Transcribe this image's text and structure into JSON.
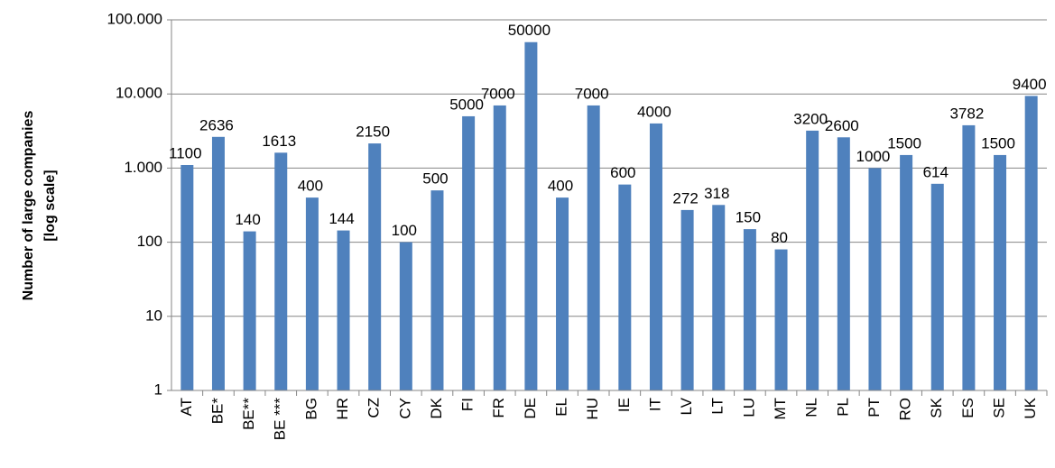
{
  "chart_data": {
    "type": "bar",
    "ylabel": [
      "Number of large companies",
      "[log scale]"
    ],
    "categories": [
      "AT",
      "BE*",
      "BE**",
      "BE ***",
      "BG",
      "HR",
      "CZ",
      "CY",
      "DK",
      "FI",
      "FR",
      "DE",
      "EL",
      "HU",
      "IE",
      "IT",
      "LV",
      "LT",
      "LU",
      "MT",
      "NL",
      "PL",
      "PT",
      "RO",
      "SK",
      "ES",
      "SE",
      "UK"
    ],
    "values": [
      1100,
      2636,
      140,
      1613,
      400,
      144,
      2150,
      100,
      500,
      5000,
      7000,
      50000,
      400,
      7000,
      600,
      4000,
      272,
      318,
      150,
      80,
      3200,
      2600,
      1000,
      1500,
      614,
      3782,
      1500,
      9400
    ],
    "color": "#4f81bd",
    "ylim": [
      1,
      100000
    ],
    "yticks": [
      1,
      10,
      100,
      {
        "value": 1000,
        "label": "1.000"
      },
      {
        "value": 10000,
        "label": "10.000"
      },
      {
        "value": 100000,
        "label": "100.000"
      }
    ],
    "log_scale": true,
    "grid": true
  }
}
